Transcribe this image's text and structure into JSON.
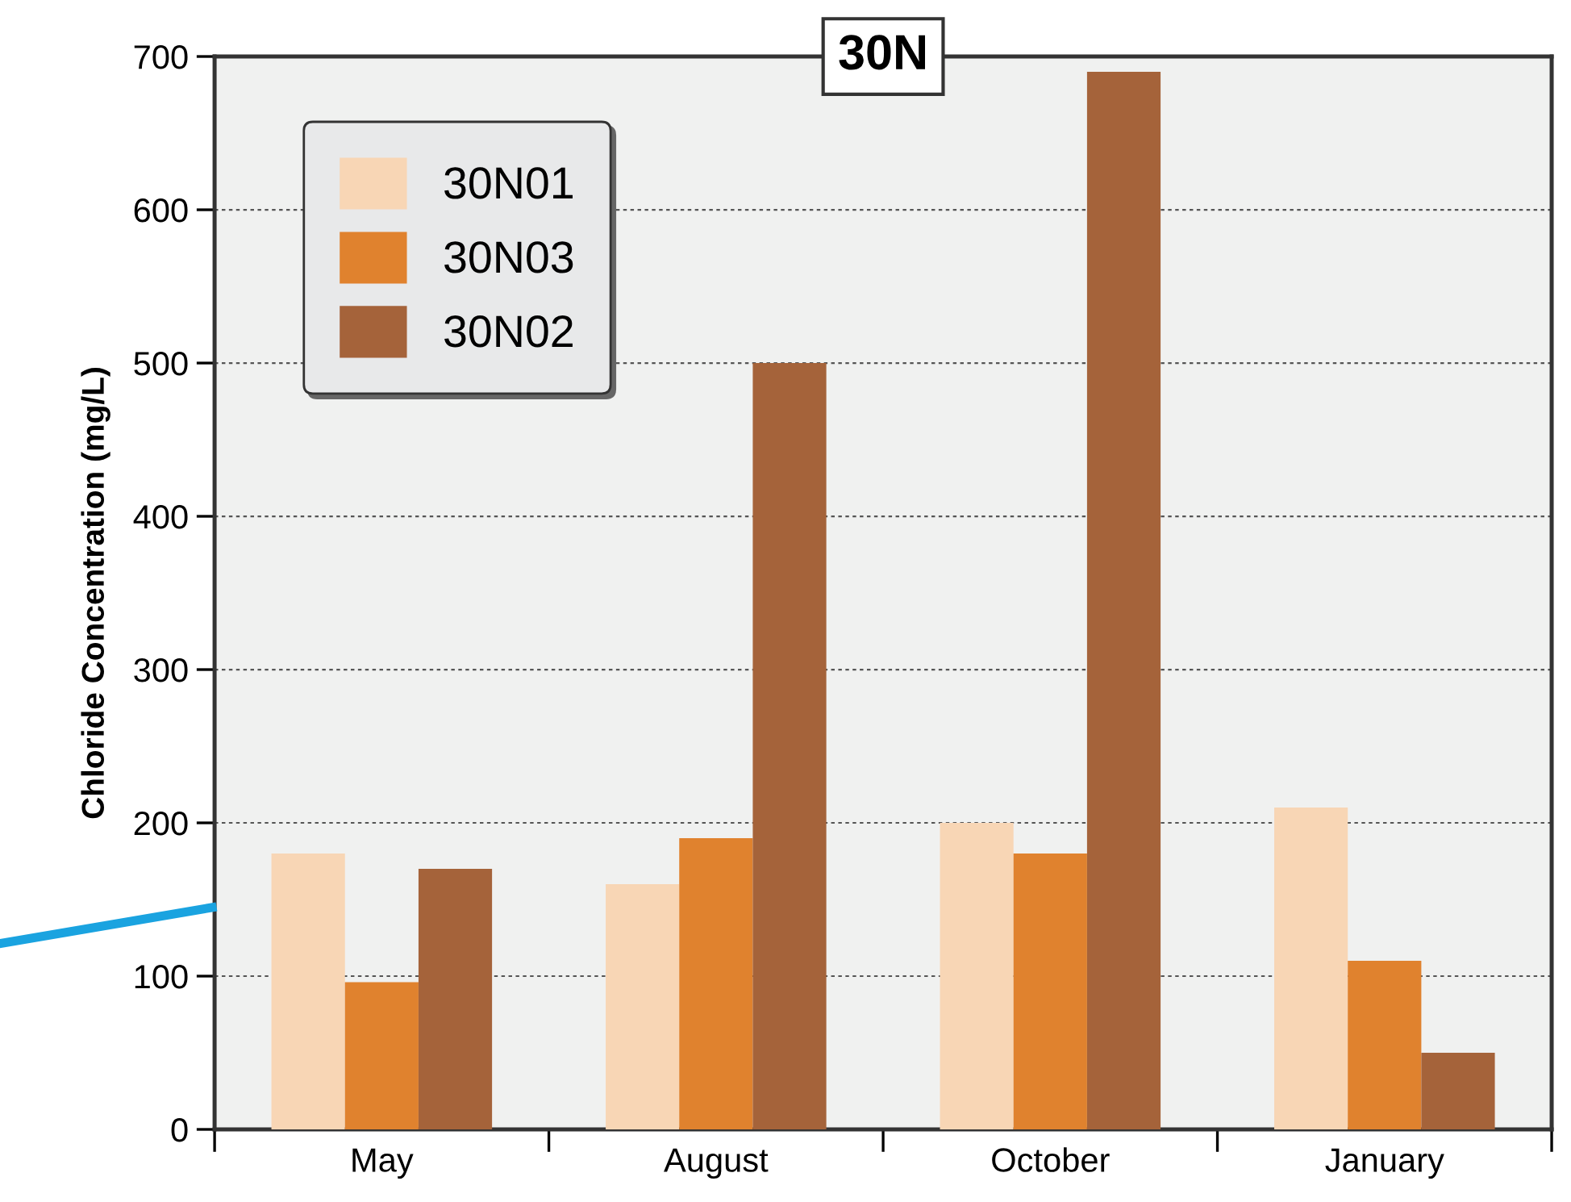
{
  "chart_data": {
    "type": "bar",
    "title": "30N",
    "ylabel": "Chloride Concentration (mg/L)",
    "categories": [
      "May",
      "August",
      "October",
      "January"
    ],
    "series": [
      {
        "name": "30N01",
        "color": "#f8d6b5",
        "values": [
          180,
          160,
          200,
          210
        ]
      },
      {
        "name": "30N03",
        "color": "#e0822e",
        "values": [
          96,
          190,
          180,
          110
        ]
      },
      {
        "name": "30N02",
        "color": "#a5633a",
        "values": [
          170,
          500,
          690,
          50
        ]
      }
    ],
    "ylim": [
      0,
      700
    ],
    "yticks": [
      0,
      100,
      200,
      300,
      400,
      500,
      600,
      700
    ],
    "grid": "y",
    "legend": "top left"
  }
}
